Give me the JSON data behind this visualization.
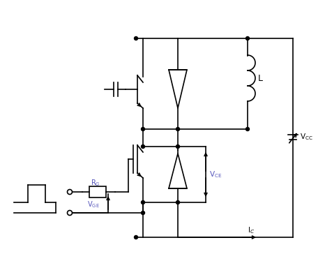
{
  "bg_color": "#ffffff",
  "line_color": "#000000",
  "label_color_blue": "#5555bb",
  "label_color_black": "#000000",
  "fig_width": 4.66,
  "fig_height": 3.74,
  "dpi": 100
}
